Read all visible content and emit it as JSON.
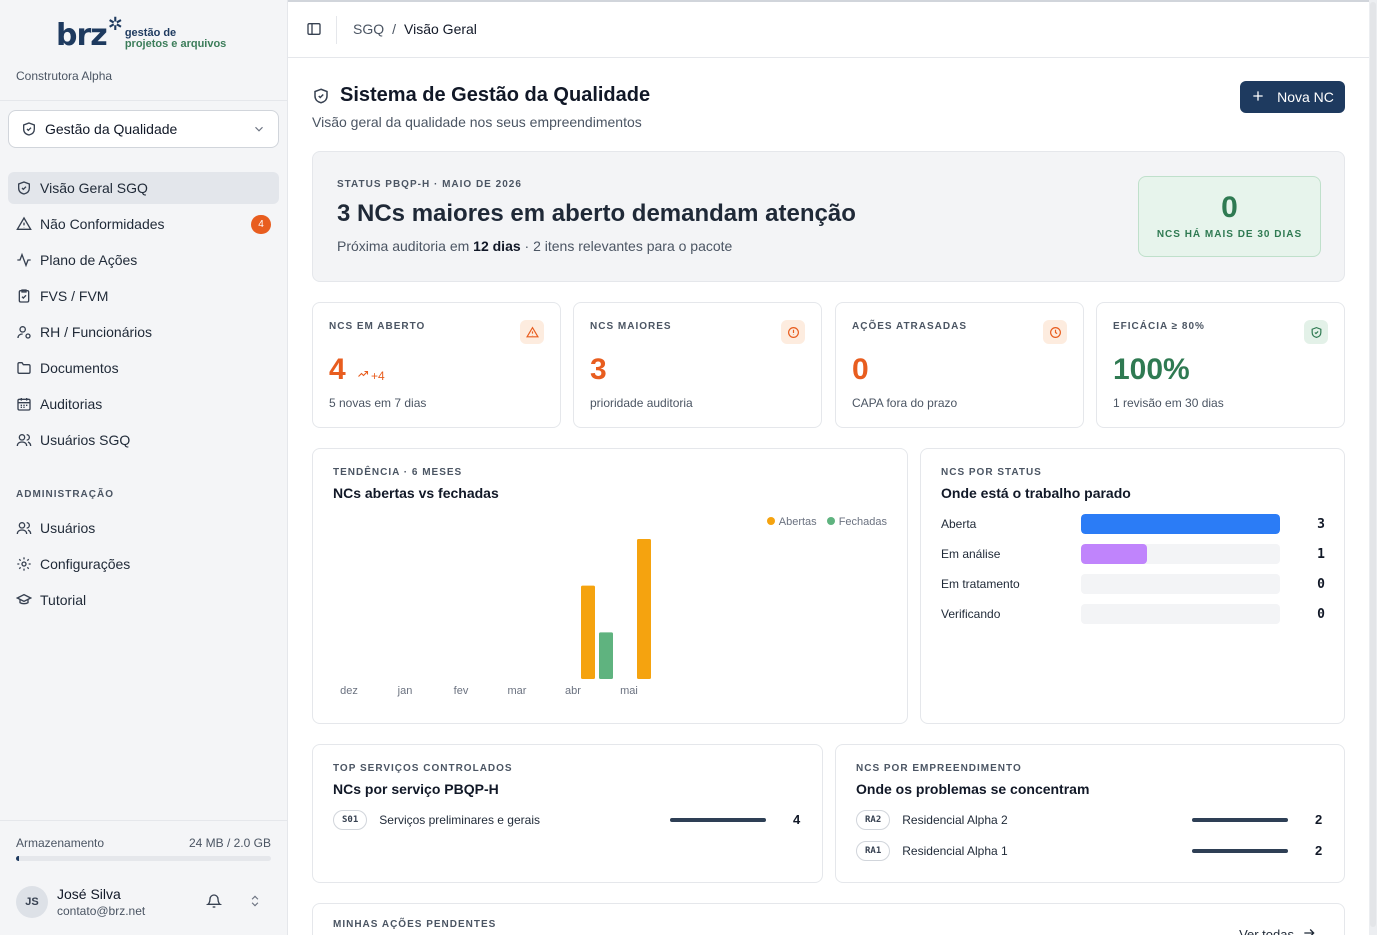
{
  "brand": {
    "logo_main": "brz",
    "logo_line1": "gestão de",
    "logo_line2": "projetos e arquivos",
    "company": "Construtora Alpha"
  },
  "module_select": {
    "value": "Gestão da Qualidade"
  },
  "nav": {
    "items": [
      {
        "label": "Visão Geral SGQ",
        "icon": "shield-check-icon",
        "active": true
      },
      {
        "label": "Não Conformidades",
        "icon": "warning-triangle-icon",
        "badge": "4"
      },
      {
        "label": "Plano de Ações",
        "icon": "activity-icon"
      },
      {
        "label": "FVS / FVM",
        "icon": "clipboard-check-icon"
      },
      {
        "label": "RH / Funcionários",
        "icon": "user-cog-icon"
      },
      {
        "label": "Documentos",
        "icon": "folder-icon"
      },
      {
        "label": "Auditorias",
        "icon": "calendar-icon"
      },
      {
        "label": "Usuários SGQ",
        "icon": "users-icon"
      }
    ],
    "admin_label": "ADMINISTRAÇÃO",
    "admin_items": [
      {
        "label": "Usuários",
        "icon": "users-icon"
      },
      {
        "label": "Configurações",
        "icon": "gear-icon"
      },
      {
        "label": "Tutorial",
        "icon": "graduation-cap-icon"
      }
    ]
  },
  "storage": {
    "label": "Armazenamento",
    "value": "24 MB / 2.0 GB",
    "fraction": 0.012
  },
  "user": {
    "initials": "JS",
    "name": "José Silva",
    "email": "contato@brz.net"
  },
  "breadcrumb": {
    "root": "SGQ",
    "separator": "/",
    "current": "Visão Geral"
  },
  "page": {
    "title": "Sistema de Gestão da Qualidade",
    "subtitle": "Visão geral da qualidade nos seus empreendimentos",
    "new_button": "Nova NC"
  },
  "status_banner": {
    "eyebrow": "STATUS PBQP-H · MAIO DE 2026",
    "headline": "3 NCs maiores em aberto demandam atenção",
    "sub_prefix": "Próxima auditoria em ",
    "sub_bold": "12 dias",
    "sub_suffix": " · 2 itens relevantes para o pacote",
    "aged_value": "0",
    "aged_label": "NCS HÁ MAIS DE 30 DIAS"
  },
  "kpis": [
    {
      "label": "NCS EM ABERTO",
      "value": "4",
      "trend": "+4",
      "foot": "5 novas em 7 dias",
      "color": "#e85d1f",
      "icon": "warning-triangle-icon"
    },
    {
      "label": "NCS MAIORES",
      "value": "3",
      "foot": "prioridade auditoria",
      "color": "#e85d1f",
      "icon": "alert-circle-icon"
    },
    {
      "label": "AÇÕES ATRASADAS",
      "value": "0",
      "foot": "CAPA fora do prazo",
      "color": "#e85d1f",
      "icon": "clock-icon"
    },
    {
      "label": "EFICÁCIA ≥ 80%",
      "value": "100%",
      "foot": "1 revisão em 30 dias",
      "color": "#2f7a52",
      "icon": "shield-check-icon"
    }
  ],
  "trend_card": {
    "eyebrow": "TENDÊNCIA · 6 MESES",
    "title": "NCs abertas vs fechadas"
  },
  "chart_data": {
    "type": "bar",
    "categories": [
      "dez",
      "jan",
      "fev",
      "mar",
      "abr",
      "mai"
    ],
    "series": [
      {
        "name": "Abertas",
        "color": "#f5a30f",
        "values": [
          0,
          0,
          0,
          0,
          2,
          3
        ]
      },
      {
        "name": "Fechadas",
        "color": "#5fb37f",
        "values": [
          0,
          0,
          0,
          0,
          1,
          0
        ]
      }
    ],
    "ylim": [
      0,
      3
    ],
    "legend": "top-right"
  },
  "status_card": {
    "eyebrow": "NCS POR STATUS",
    "title": "Onde está o trabalho parado",
    "rows": [
      {
        "label": "Aberta",
        "value": 3,
        "color": "#2b7cf6"
      },
      {
        "label": "Em análise",
        "value": 1,
        "color": "#c084fc"
      },
      {
        "label": "Em tratamento",
        "value": 0,
        "color": "#9ca3af"
      },
      {
        "label": "Verificando",
        "value": 0,
        "color": "#9ca3af"
      }
    ],
    "max": 3
  },
  "services_card": {
    "eyebrow": "TOP SERVIÇOS CONTROLADOS",
    "title": "NCs por serviço PBQP-H",
    "rows": [
      {
        "code": "S01",
        "label": "Serviços preliminares e gerais",
        "value": "4"
      }
    ]
  },
  "projects_card": {
    "eyebrow": "NCS POR EMPREENDIMENTO",
    "title": "Onde os problemas se concentram",
    "rows": [
      {
        "code": "RA2",
        "label": "Residencial Alpha 2",
        "value": "2"
      },
      {
        "code": "RA1",
        "label": "Residencial Alpha 1",
        "value": "2"
      }
    ]
  },
  "pending_card": {
    "eyebrow": "MINHAS AÇÕES PENDENTES",
    "link": "Ver todas"
  }
}
